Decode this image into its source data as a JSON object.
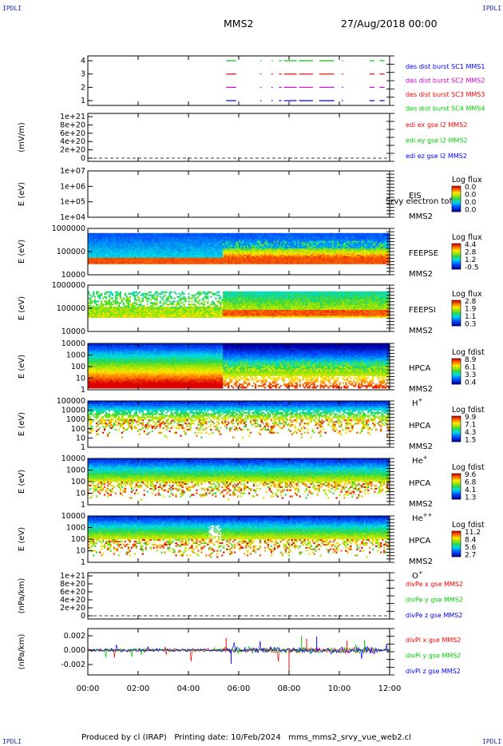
{
  "header": {
    "spacecraft": "MMS2",
    "datetime": "27/Aug/2018 00:00"
  },
  "corner_label": "IPDLI",
  "footer": {
    "text": "Produced by cl (IRAP)   Printing date: 10/Feb/2024   mms_mms2_srvy_vue_web2.cl"
  },
  "chart_data": [
    {
      "id": "burst",
      "type": "line",
      "ylabel": "",
      "yticks": [
        "4",
        "3",
        "2",
        "1"
      ],
      "legend": [
        {
          "text": "des dist burst SC1 MMS1",
          "color": "#0000ff"
        },
        {
          "text": "des dist burst SC2 MMS2",
          "color": "#cc00cc"
        },
        {
          "text": "des dist burst SC3 MMS3",
          "color": "#ff0000"
        },
        {
          "text": "des dist burst SC4 MMS4",
          "color": "#00cc00"
        }
      ],
      "burst_intervals_hours": [
        [
          5.5,
          5.9
        ],
        [
          6.85,
          6.9
        ],
        [
          7.3,
          7.35
        ],
        [
          7.6,
          7.7
        ],
        [
          7.8,
          8.3
        ],
        [
          8.4,
          8.95
        ],
        [
          9.2,
          9.8
        ],
        [
          10.1,
          10.15
        ],
        [
          11.2,
          11.4
        ],
        [
          11.6,
          11.8
        ]
      ]
    },
    {
      "id": "edi",
      "type": "line",
      "ylabel": "(mV/m)",
      "yticks": [
        "1e+21",
        "8e+20",
        "6e+20",
        "4e+20",
        "2e+20",
        "0"
      ],
      "legend": [
        {
          "text": "edi ex gse l2 MMS2",
          "color": "#ff0000"
        },
        {
          "text": "edi ey gse l2 MMS2",
          "color": "#00cc00"
        },
        {
          "text": "edi ez gse l2 MMS2",
          "color": "#0000ff"
        }
      ]
    },
    {
      "id": "eis",
      "type": "heatmap",
      "ylabel": "E (eV)",
      "yticks": [
        "1e+07",
        "1e+06",
        "1e+05",
        "1e+04"
      ],
      "instrument": [
        "EIS",
        "MMS2"
      ],
      "note": "Srvy electron tof",
      "colorbar": {
        "title": "Log flux",
        "ticks": [
          "0.0",
          "0.0",
          "0.0",
          "0.0"
        ]
      }
    },
    {
      "id": "feepse",
      "type": "heatmap",
      "ylabel": "E (eV)",
      "yticks": [
        "1000000",
        "100000",
        "10000"
      ],
      "instrument": [
        "FEEPSE",
        "MMS2"
      ],
      "colorbar": {
        "title": "Log flux",
        "ticks": [
          "4.4",
          "2.8",
          "1.2",
          "-0.5"
        ]
      }
    },
    {
      "id": "feepsi",
      "type": "heatmap",
      "ylabel": "E (eV)",
      "yticks": [
        "1000000",
        "100000",
        "10000"
      ],
      "instrument": [
        "FEEPSI",
        "MMS2"
      ],
      "colorbar": {
        "title": "Log flux",
        "ticks": [
          "2.8",
          "1.9",
          "1.1",
          "0.3"
        ]
      }
    },
    {
      "id": "hpca_h",
      "type": "heatmap",
      "ylabel": "E (eV)",
      "yticks": [
        "10000",
        "1000",
        "100",
        "10",
        "1"
      ],
      "instrument": [
        "HPCA",
        "MMS2",
        "H",
        "+"
      ],
      "colorbar": {
        "title": "Log fdist",
        "ticks": [
          "8.9",
          "6.1",
          "3.3",
          "0.4"
        ]
      }
    },
    {
      "id": "hpca_he",
      "type": "heatmap",
      "ylabel": "E (eV)",
      "yticks": [
        "100000",
        "10000",
        "1000",
        "100",
        "10",
        "1"
      ],
      "instrument": [
        "HPCA",
        "MMS2",
        "He",
        "+"
      ],
      "colorbar": {
        "title": "Log fdist",
        "ticks": [
          "9.9",
          "7.1",
          "4.3",
          "1.5"
        ]
      }
    },
    {
      "id": "hpca_hepp",
      "type": "heatmap",
      "ylabel": "E (eV)",
      "yticks": [
        "10000",
        "1000",
        "100",
        "10",
        "1"
      ],
      "instrument": [
        "HPCA",
        "MMS2",
        "He",
        "++"
      ],
      "colorbar": {
        "title": "Log fdist",
        "ticks": [
          "9.6",
          "6.8",
          "4.1",
          "1.3"
        ]
      }
    },
    {
      "id": "hpca_o",
      "type": "heatmap",
      "ylabel": "E (eV)",
      "yticks": [
        "10000",
        "1000",
        "100",
        "10",
        "1"
      ],
      "instrument": [
        "HPCA",
        "MMS2",
        "O",
        "+"
      ],
      "colorbar": {
        "title": "Log fdist",
        "ticks": [
          "11.2",
          "8.4",
          "5.6",
          "2.7"
        ]
      }
    },
    {
      "id": "divpe",
      "type": "line",
      "ylabel": "(nPa/km)",
      "yticks": [
        "1e+21",
        "8e+20",
        "6e+20",
        "4e+20",
        "2e+20",
        "0"
      ],
      "legend": [
        {
          "text": "divPe x gse MMS2",
          "color": "#ff0000"
        },
        {
          "text": "divPe y gse MMS2",
          "color": "#00cc00"
        },
        {
          "text": "divPe z gse MMS2",
          "color": "#0000ff"
        }
      ]
    },
    {
      "id": "divpi",
      "type": "line",
      "ylabel": "(nPa/km)",
      "yticks": [
        "0.002",
        "0.000",
        "-0.002"
      ],
      "ylim": [
        -0.0035,
        0.003
      ],
      "legend": [
        {
          "text": "divPi x gse MMS2",
          "color": "#ff0000"
        },
        {
          "text": "divPi y gse MMS2",
          "color": "#00cc00"
        },
        {
          "text": "divPi z gse MMS2",
          "color": "#0000ff"
        }
      ]
    }
  ],
  "xaxis": {
    "ticks": [
      "00:00",
      "02:00",
      "04:00",
      "06:00",
      "08:00",
      "10:00",
      "12:00"
    ],
    "range_hours": [
      0,
      12
    ]
  }
}
